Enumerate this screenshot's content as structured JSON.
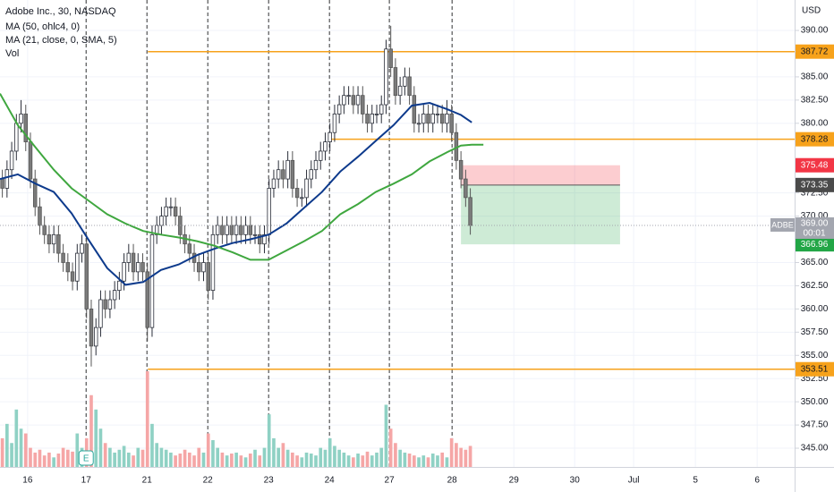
{
  "chart_data": {
    "type": "candlestick",
    "title": "Adobe Inc., 30, NASDAQ",
    "currency": "USD",
    "symbol": "ADBE",
    "earnings_marker": "E",
    "ylim": [
      342.98,
      393.28
    ],
    "xlim": [
      -0.5,
      169.3
    ],
    "grid": true,
    "up_color": "#ffffff",
    "down_color": "#7b7b7b",
    "yticks": [
      {
        "value": 390,
        "label": "390.00"
      },
      {
        "value": 385,
        "label": "385.00"
      },
      {
        "value": 382.5,
        "label": "382.50"
      },
      {
        "value": 380,
        "label": "380.00"
      },
      {
        "value": 372.5,
        "label": "372.50"
      },
      {
        "value": 370,
        "label": "370.00"
      },
      {
        "value": 365,
        "label": "365.00"
      },
      {
        "value": 362.5,
        "label": "362.50"
      },
      {
        "value": 360,
        "label": "360.00"
      },
      {
        "value": 357.5,
        "label": "357.50"
      },
      {
        "value": 355,
        "label": "355.00"
      },
      {
        "value": 352.5,
        "label": "352.50"
      },
      {
        "value": 350,
        "label": "350.00"
      },
      {
        "value": 347.5,
        "label": "347.50"
      },
      {
        "value": 345,
        "label": "345.00"
      }
    ],
    "xticks": [
      {
        "value": 5.4,
        "label": "16"
      },
      {
        "value": 17.9,
        "label": "17"
      },
      {
        "value": 30.9,
        "label": "21"
      },
      {
        "value": 43.9,
        "label": "22"
      },
      {
        "value": 56.9,
        "label": "23"
      },
      {
        "value": 69.9,
        "label": "24"
      },
      {
        "value": 82.7,
        "label": "27"
      },
      {
        "value": 96.1,
        "label": "28"
      },
      {
        "value": 109.3,
        "label": "29"
      },
      {
        "value": 122.3,
        "label": "30"
      },
      {
        "value": 134.9,
        "label": "Jul"
      },
      {
        "value": 148.1,
        "label": "5"
      },
      {
        "value": 161.3,
        "label": "6"
      }
    ],
    "session_breaks": [
      17.9,
      30.9,
      43.9,
      56.9,
      69.9,
      82.7,
      96.1
    ],
    "open": [
      374,
      373,
      375,
      377,
      380,
      381,
      378,
      374,
      371,
      369,
      368,
      367,
      368,
      366,
      365,
      364,
      363,
      366,
      367,
      360,
      356,
      358,
      361,
      360,
      361,
      362,
      363,
      365,
      366,
      364,
      365,
      364,
      358,
      368,
      369,
      370,
      371,
      371,
      370,
      368,
      367,
      366,
      365,
      364,
      365,
      362,
      368,
      369,
      368,
      369,
      368,
      369,
      368,
      369,
      368,
      368,
      367,
      368,
      373,
      374,
      375,
      374,
      376,
      373,
      372,
      372,
      374,
      375,
      376,
      377,
      378,
      379,
      381,
      382,
      383,
      383,
      382,
      383,
      381,
      380,
      381,
      381,
      382,
      388,
      386,
      383,
      384,
      385,
      383,
      380,
      380,
      381,
      380,
      381,
      381,
      380,
      381,
      379,
      376,
      374,
      372
    ],
    "high": [
      375,
      376,
      378,
      381,
      382.5,
      382,
      379,
      375,
      372,
      370,
      369,
      369,
      369,
      367,
      366,
      365,
      367,
      368,
      368,
      361,
      359,
      362,
      362,
      362,
      363,
      364,
      366,
      367,
      367,
      366,
      366,
      365,
      369,
      370,
      371,
      372,
      372,
      372,
      371,
      369,
      368,
      367,
      366,
      366,
      366,
      369,
      370,
      370,
      370,
      370,
      370,
      370,
      370,
      370,
      369,
      369,
      369,
      374,
      375,
      376,
      376,
      377,
      377,
      374,
      373,
      375,
      376,
      377,
      378,
      379,
      380,
      382,
      383,
      384,
      384,
      384,
      384,
      384,
      382,
      382,
      382,
      383,
      389,
      390.5,
      387,
      385,
      386,
      386,
      384,
      381,
      382,
      382,
      382,
      382,
      382,
      382.5,
      382,
      380,
      377,
      375,
      373
    ],
    "low": [
      372,
      372,
      374,
      376,
      379,
      377,
      373,
      370,
      368,
      367,
      366,
      366,
      365,
      364,
      363,
      362,
      362,
      365,
      359,
      353.8,
      355,
      357,
      359,
      359,
      360,
      361,
      362,
      364,
      363,
      363,
      363,
      356.5,
      357,
      367,
      368,
      369,
      370,
      369,
      367,
      366,
      365,
      364,
      363,
      363,
      361,
      361,
      367,
      367,
      367,
      367,
      367,
      367,
      367,
      367,
      367,
      366,
      366,
      367,
      372,
      373,
      373,
      373,
      372,
      371,
      371,
      371,
      373,
      374,
      375,
      376,
      377,
      378,
      380,
      381,
      382,
      381,
      381,
      380,
      379,
      379,
      380,
      380,
      381,
      385,
      382,
      382,
      383,
      382,
      379,
      379,
      379,
      379,
      379,
      380,
      379,
      379,
      378,
      375,
      373,
      371,
      368
    ],
    "close": [
      373,
      375,
      377,
      380,
      381,
      378,
      374,
      371,
      369,
      368,
      367,
      368,
      366,
      365,
      364,
      363,
      366,
      367,
      360,
      356,
      358,
      361,
      360,
      361,
      362,
      363,
      365,
      366,
      364,
      365,
      364,
      358,
      368,
      369,
      370,
      371,
      371,
      370,
      368,
      367,
      366,
      365,
      364,
      365,
      362,
      368,
      369,
      368,
      369,
      368,
      369,
      368,
      369,
      368,
      368,
      367,
      368,
      373,
      374,
      375,
      374,
      376,
      373,
      372,
      372,
      374,
      375,
      376,
      377,
      378,
      379,
      381,
      382,
      383,
      383,
      382,
      383,
      381,
      380,
      381,
      381,
      382,
      388,
      386,
      383,
      384,
      385,
      383,
      380,
      380,
      381,
      380,
      381,
      381,
      380,
      381,
      379,
      376,
      374,
      372,
      369
    ],
    "volume": {
      "name": "Vol",
      "ylim": [
        0,
        100
      ],
      "up_color": "#8fd1c4",
      "down_color": "#f5a6a6",
      "values": [
        30,
        45,
        25,
        60,
        40,
        35,
        20,
        15,
        18,
        12,
        15,
        10,
        14,
        20,
        18,
        16,
        35,
        20,
        30,
        75,
        60,
        40,
        25,
        20,
        15,
        18,
        22,
        15,
        12,
        20,
        18,
        100,
        45,
        25,
        20,
        18,
        15,
        12,
        14,
        18,
        15,
        12,
        20,
        15,
        35,
        28,
        20,
        15,
        12,
        14,
        15,
        12,
        10,
        14,
        18,
        12,
        20,
        55,
        30,
        20,
        25,
        18,
        15,
        12,
        10,
        15,
        14,
        12,
        20,
        18,
        30,
        22,
        18,
        15,
        12,
        10,
        14,
        12,
        16,
        12,
        15,
        20,
        65,
        40,
        25,
        18,
        15,
        14,
        12,
        10,
        12,
        10,
        14,
        12,
        15,
        10,
        30,
        25,
        20,
        18,
        22
      ]
    },
    "series": [
      {
        "name": "MA (50, ohlc4, 0)",
        "color": "#0d3a8c",
        "x": [
          -0.5,
          3.3,
          7.1,
          11,
          14.8,
          18.6,
          22.4,
          26.3,
          30.1,
          33.9,
          37.7,
          41.6,
          45.4,
          49.2,
          53,
          56.9,
          60.7,
          64.5,
          68.3,
          72.2,
          76,
          79.8,
          83.6,
          87.5,
          91.3,
          95.1,
          98,
          100.3
        ],
        "values": [
          374,
          374.5,
          373.5,
          372.6,
          370.3,
          367.3,
          364.4,
          362.6,
          362.9,
          364.2,
          364.8,
          365.8,
          366.5,
          367.1,
          367.5,
          368,
          369.2,
          370.9,
          372.6,
          374.8,
          376.4,
          378.1,
          379.8,
          381.9,
          382.2,
          381.5,
          380.9,
          380.1
        ]
      },
      {
        "name": "MA (21, close, 0, SMA, 5)",
        "color": "#3fa73f",
        "x": [
          -0.5,
          3.3,
          7.1,
          11,
          14.8,
          18.6,
          22.4,
          26.3,
          30.1,
          33.9,
          37.7,
          41.6,
          45.4,
          49.2,
          53,
          56.9,
          60.7,
          64.5,
          68.3,
          72.2,
          76,
          79.8,
          83.6,
          87.5,
          91.3,
          95.1,
          98,
          100.3,
          102.8
        ],
        "values": [
          383.2,
          379.8,
          377.4,
          375,
          373,
          371.6,
          370.2,
          369.2,
          368.4,
          368,
          367.7,
          367.3,
          366.8,
          366.1,
          365.3,
          365.3,
          366.3,
          367.3,
          368.4,
          370.2,
          371.3,
          372.6,
          373.5,
          374.5,
          375.9,
          376.9,
          377.6,
          377.7,
          377.7
        ]
      }
    ],
    "levels": [
      {
        "value": 387.72,
        "from": 31.1,
        "color": "#f7a21b"
      },
      {
        "value": 378.28,
        "from": 70.3,
        "color": "#f7a21b"
      },
      {
        "value": 353.51,
        "from": 31.1,
        "color": "#f7a21b"
      }
    ],
    "short_position": {
      "entry": 373.35,
      "stop": 375.48,
      "target": 366.96,
      "x": [
        98,
        132
      ],
      "stop_color": "#f23645",
      "target_color": "#22a646",
      "entry_color": "#4a4a4a"
    },
    "last_price": {
      "value": 369,
      "label": "369.00",
      "countdown": "00:01",
      "color": "#a3a6af"
    }
  }
}
